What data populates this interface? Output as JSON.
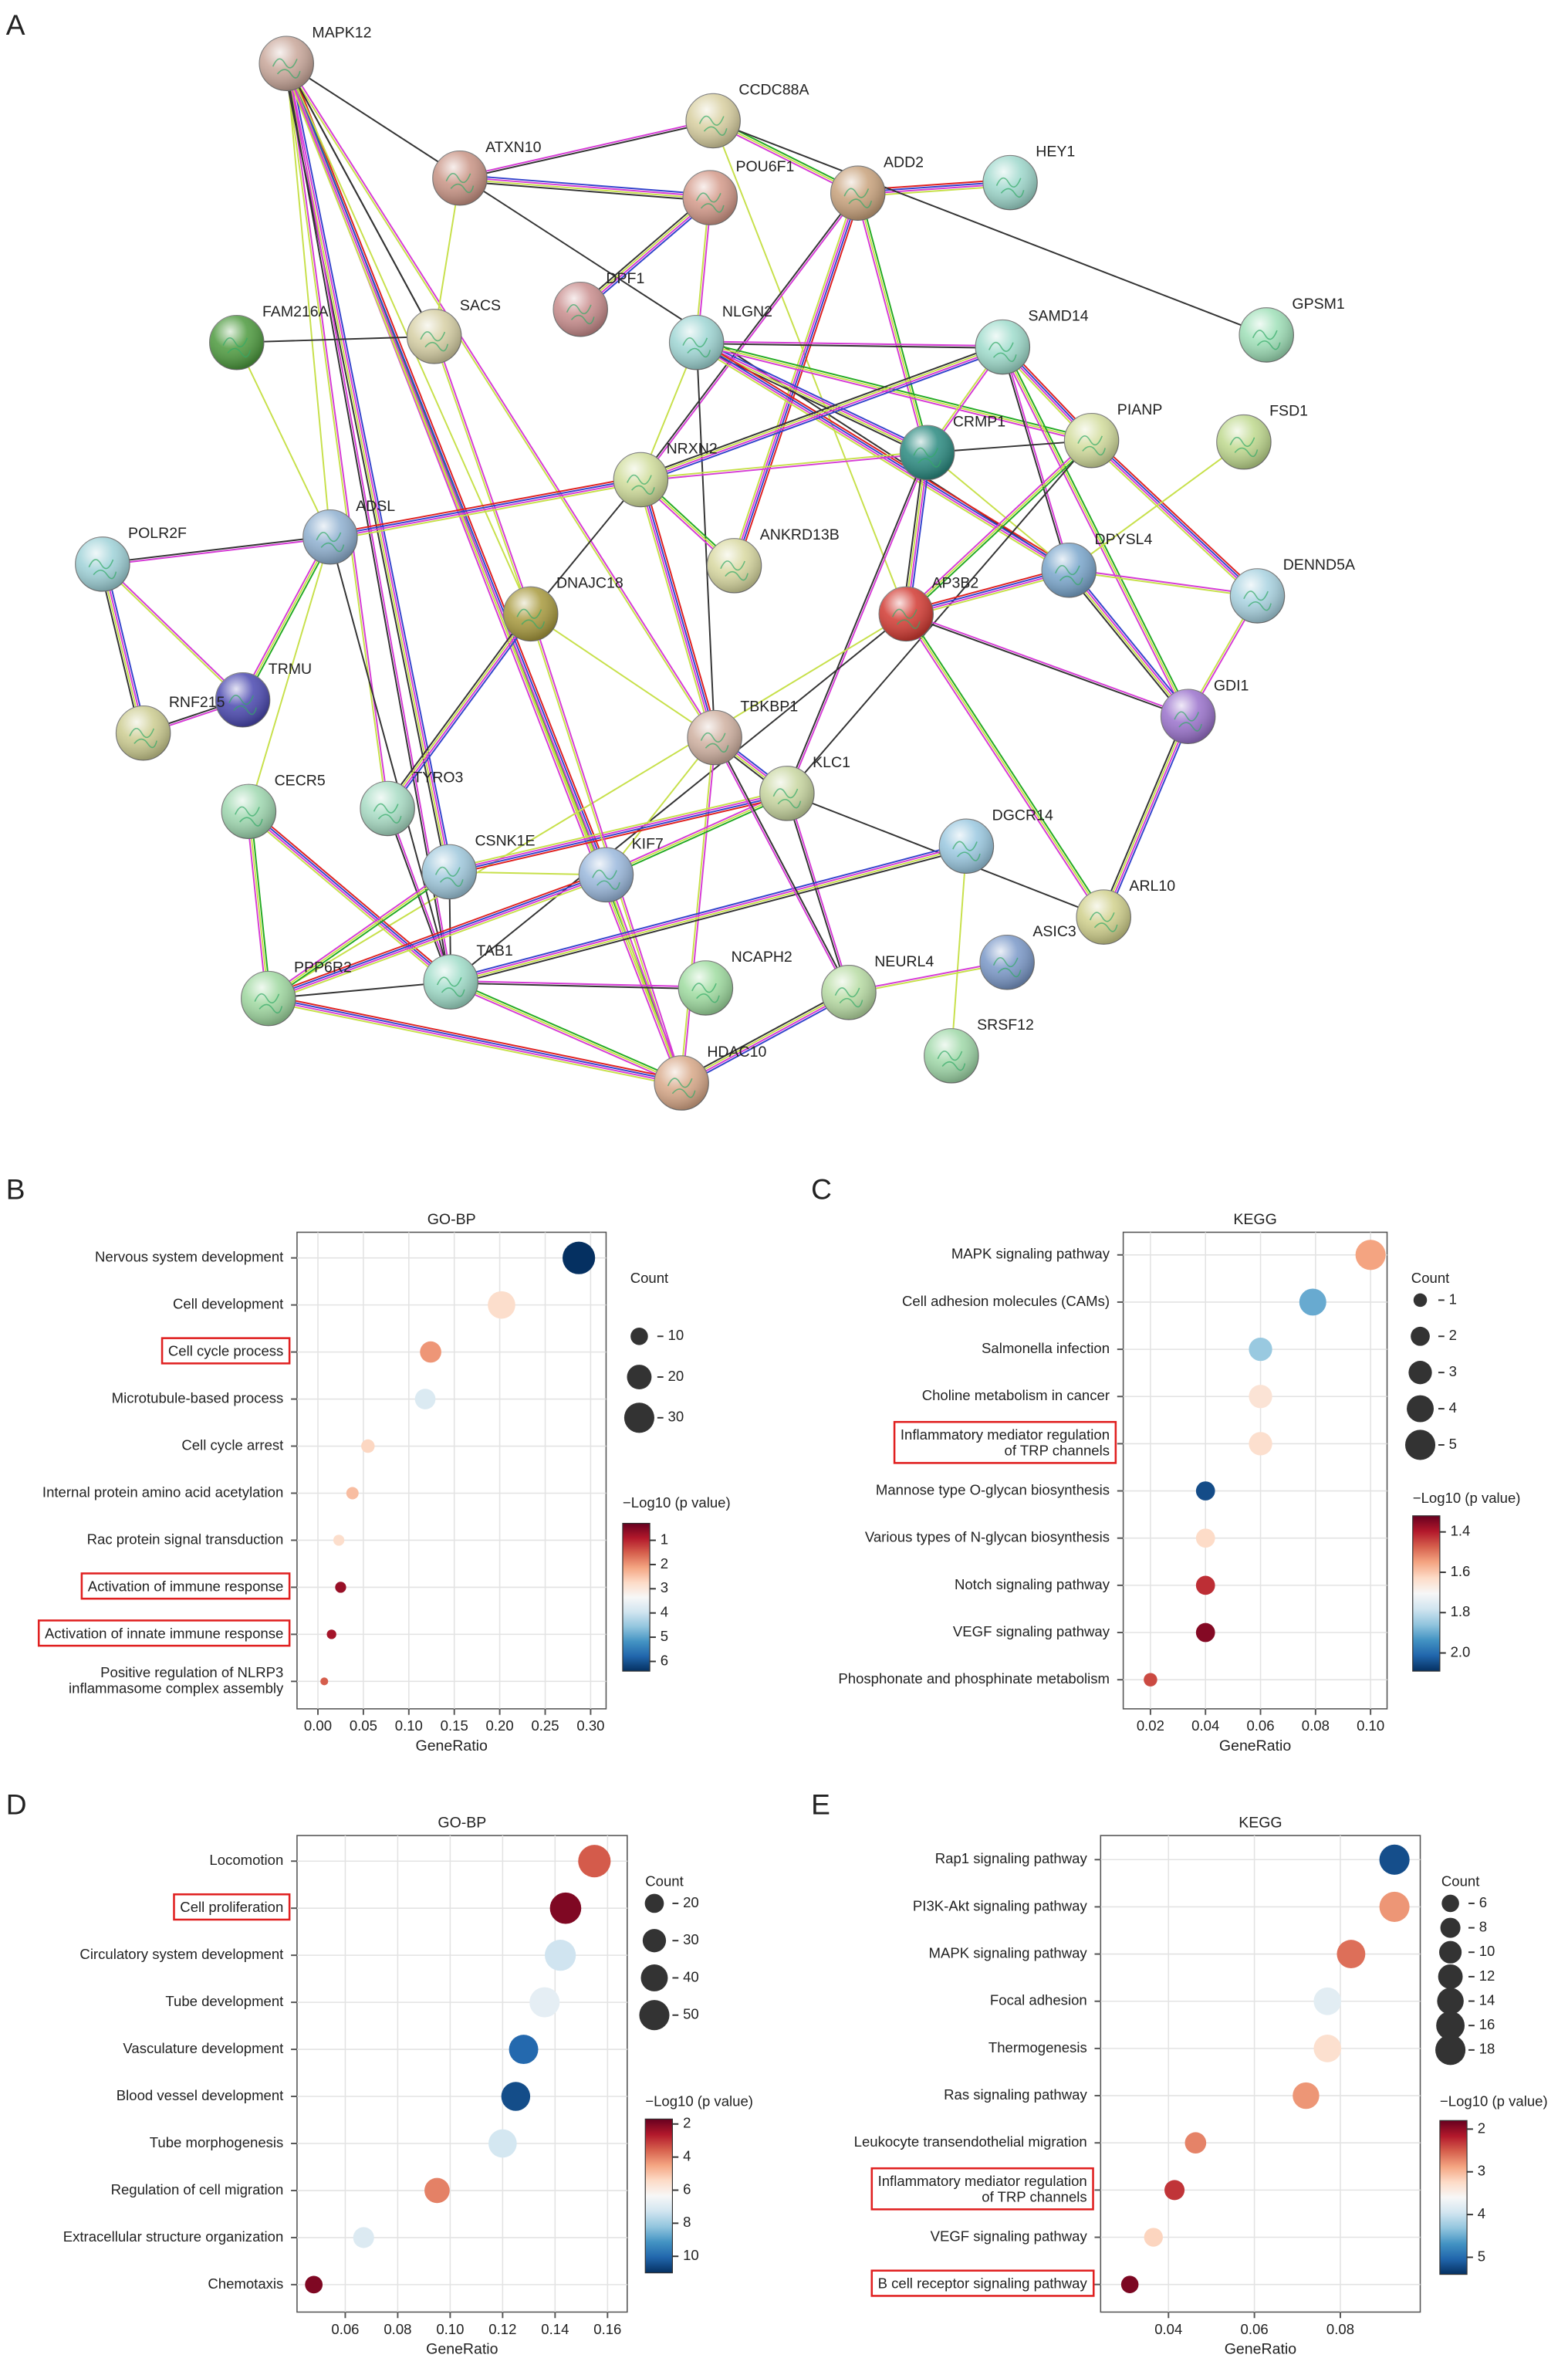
{
  "panel_labels": [
    "A",
    "B",
    "C",
    "D",
    "E"
  ],
  "network": {
    "nodes": [
      {
        "name": "MAPK12",
        "color": "#c9a79a"
      },
      {
        "name": "CCDC88A",
        "color": "#d8cfa0"
      },
      {
        "name": "ATXN10",
        "color": "#c99485"
      },
      {
        "name": "POU6F1",
        "color": "#d49a8a"
      },
      {
        "name": "ADD2",
        "color": "#c8a27c"
      },
      {
        "name": "HEY1",
        "color": "#9ed8cc"
      },
      {
        "name": "DPF1",
        "color": "#c98d8d"
      },
      {
        "name": "FAM216A",
        "color": "#4d9a3e"
      },
      {
        "name": "SACS",
        "color": "#d6cfa4"
      },
      {
        "name": "NLGN2",
        "color": "#9fd6d4"
      },
      {
        "name": "SAMD14",
        "color": "#9fdccc"
      },
      {
        "name": "GPSM1",
        "color": "#9fe0b8"
      },
      {
        "name": "CRMP1",
        "color": "#2a8a80"
      },
      {
        "name": "PIANP",
        "color": "#d2dc9c"
      },
      {
        "name": "FSD1",
        "color": "#bfd98e"
      },
      {
        "name": "NRXN2",
        "color": "#cfdc9a"
      },
      {
        "name": "POLR2F",
        "color": "#9fd2d8"
      },
      {
        "name": "ADSL",
        "color": "#8fb0d0"
      },
      {
        "name": "ANKRD13B",
        "color": "#d8d8a0"
      },
      {
        "name": "AP3B2",
        "color": "#d23a32"
      },
      {
        "name": "DPYSL4",
        "color": "#7aa6cc"
      },
      {
        "name": "DENND5A",
        "color": "#a8d2e0"
      },
      {
        "name": "DNAJC18",
        "color": "#a89a3e"
      },
      {
        "name": "TRMU",
        "color": "#4a48b0"
      },
      {
        "name": "RNF215",
        "color": "#cccc90"
      },
      {
        "name": "GDI1",
        "color": "#9a72cc"
      },
      {
        "name": "TBKBP1",
        "color": "#cfb0a0"
      },
      {
        "name": "KLC1",
        "color": "#c8d6a0"
      },
      {
        "name": "CECR5",
        "color": "#9fd8b0"
      },
      {
        "name": "TYRO3",
        "color": "#a8dcc4"
      },
      {
        "name": "CSNK1E",
        "color": "#9fc8dc"
      },
      {
        "name": "KIF7",
        "color": "#9ab8dc"
      },
      {
        "name": "DGCR14",
        "color": "#9ac8e0"
      },
      {
        "name": "ARL10",
        "color": "#d0d08c"
      },
      {
        "name": "ASIC3",
        "color": "#7a98c8"
      },
      {
        "name": "PPP6R2",
        "color": "#9fd8a0"
      },
      {
        "name": "TAB1",
        "color": "#9fdcc8"
      },
      {
        "name": "NCAPH2",
        "color": "#9fdca0"
      },
      {
        "name": "NEURL4",
        "color": "#b8dca4"
      },
      {
        "name": "SRSF12",
        "color": "#9fd8a8"
      },
      {
        "name": "HDAC10",
        "color": "#d8a888"
      }
    ]
  },
  "chart_data": [
    {
      "type": "dot",
      "title": "GO-BP",
      "xlabel": "GeneRatio",
      "categories": [
        "Nervous system development",
        "Cell development",
        "Cell cycle process",
        "Microtubule-based process",
        "Cell cycle arrest",
        "Internal protein amino acid acetylation",
        "Rac protein signal transduction",
        "Activation of immune response",
        "Activation of innate immune response",
        "Positive regulation of NLRP3\ninflammasome complex assembly"
      ],
      "values": [
        0.287,
        0.202,
        0.124,
        0.118,
        0.055,
        0.038,
        0.023,
        0.025,
        0.015,
        0.007
      ],
      "sizes": [
        35,
        25,
        15,
        14,
        6,
        5,
        4,
        4,
        3,
        2
      ],
      "color_values": [
        6.5,
        2.8,
        2.0,
        3.8,
        2.7,
        2.4,
        2.8,
        0.7,
        0.8,
        1.5
      ],
      "size_label": "Count",
      "size_ticks": [
        10,
        20,
        30
      ],
      "color_label": "−Log10 (p value)",
      "clim": [
        0.3,
        6.4
      ],
      "color_ticks": [
        1,
        2,
        3,
        4,
        5,
        6
      ],
      "colormap": "RdBu_r",
      "xlim": [
        -0.023,
        0.317
      ],
      "xticks": [
        {
          "value": 0,
          "label": "0.00"
        },
        0.05,
        {
          "value": 0.1,
          "label": "0.10"
        },
        0.15,
        {
          "value": 0.2,
          "label": "0.20"
        },
        0.25,
        {
          "value": 0.3,
          "label": "0.30"
        }
      ],
      "highlight": [
        2,
        7,
        8
      ],
      "grid": true
    },
    {
      "type": "dot",
      "title": "KEGG",
      "xlabel": "GeneRatio",
      "categories": [
        "MAPK signaling pathway",
        "Cell adhesion molecules (CAMs)",
        "Salmonella infection",
        "Choline metabolism in cancer",
        "Inflammatory mediator regulation\nof TRP channels",
        "Mannose type O-glycan biosynthesis",
        "Various types of N-glycan biosynthesis",
        "Notch signaling pathway",
        "VEGF signaling pathway",
        "Phosphonate and phosphinate metabolism"
      ],
      "values": [
        0.1,
        0.079,
        0.06,
        0.06,
        0.06,
        0.04,
        0.04,
        0.04,
        0.04,
        0.02
      ],
      "sizes": [
        5,
        4,
        3,
        3,
        3,
        2,
        2,
        2,
        2,
        1
      ],
      "color_values": [
        1.55,
        1.9,
        1.85,
        1.65,
        1.64,
        2.05,
        1.63,
        1.42,
        1.35,
        1.45
      ],
      "size_label": "Count",
      "size_ticks": [
        1,
        2,
        3,
        4,
        5
      ],
      "color_label": "−Log10 (p value)",
      "clim": [
        1.32,
        2.09
      ],
      "color_ticks": [
        1.4,
        1.6,
        1.8,
        {
          "value": 2,
          "label": "2.0"
        }
      ],
      "colormap": "RdBu_r",
      "xlim": [
        0.0101,
        0.106
      ],
      "xticks": [
        0.02,
        0.04,
        0.06,
        0.08,
        {
          "value": 0.1,
          "label": "0.10"
        }
      ],
      "highlight": [
        4
      ],
      "grid": true
    },
    {
      "type": "dot",
      "title": "GO-BP",
      "xlabel": "GeneRatio",
      "categories": [
        "Locomotion",
        "Cell proliferation",
        "Circulatory system development",
        "Tube development",
        "Vasculature development",
        "Blood vessel development",
        "Tube morphogenesis",
        "Regulation of cell migration",
        "Extracellular structure organization",
        "Chemotaxis"
      ],
      "values": [
        0.155,
        0.144,
        0.142,
        0.136,
        0.128,
        0.125,
        0.12,
        0.095,
        0.067,
        0.048
      ],
      "sizes": [
        58,
        54,
        53,
        50,
        47,
        46,
        44,
        35,
        24,
        17
      ],
      "color_values": [
        3.5,
        2,
        7.3,
        6.8,
        10,
        10.5,
        7.2,
        4,
        7,
        2
      ],
      "size_label": "Count",
      "size_ticks": [
        20,
        30,
        40,
        50
      ],
      "color_label": "−Log10 (p value)",
      "clim": [
        1.7,
        11
      ],
      "color_ticks": [
        2,
        4,
        6,
        8,
        10
      ],
      "colormap": "RdBu_r",
      "xlim": [
        0.0416,
        0.1675
      ],
      "xticks": [
        0.06,
        0.08,
        {
          "value": 0.1,
          "label": "0.10"
        },
        0.12,
        0.14,
        0.16
      ],
      "highlight": [
        1
      ],
      "grid": true
    },
    {
      "type": "dot",
      "title": "KEGG",
      "xlabel": "GeneRatio",
      "categories": [
        "Rap1 signaling pathway",
        "PI3K-Akt signaling pathway",
        "MAPK signaling pathway",
        "Focal adhesion",
        "Thermogenesis",
        "Ras signaling pathway",
        "Leukocyte transendothelial migration",
        "Inflammatory mediator regulation\nof TRP channels",
        "VEGF signaling pathway",
        "B cell receptor signaling pathway"
      ],
      "values": [
        0.0926,
        0.0926,
        0.0825,
        0.077,
        0.077,
        0.072,
        0.0463,
        0.0414,
        0.0365,
        0.031
      ],
      "sizes": [
        18,
        18,
        16,
        15,
        15,
        14,
        9,
        8,
        7,
        6
      ],
      "color_values": [
        5.2,
        2.8,
        2.6,
        3.8,
        3.3,
        2.8,
        2.7,
        2.3,
        3.2,
        1.9
      ],
      "size_label": "Count",
      "size_ticks": [
        6,
        8,
        10,
        12,
        14,
        16,
        18
      ],
      "color_label": "−Log10 (p value)",
      "clim": [
        1.8,
        5.4
      ],
      "color_ticks": [
        2,
        3,
        4,
        5
      ],
      "colormap": "RdBu_r",
      "xlim": [
        0.0242,
        0.0986
      ],
      "xticks": [
        0.04,
        0.06,
        0.08
      ],
      "highlight": [
        7,
        9
      ],
      "grid": true
    }
  ]
}
